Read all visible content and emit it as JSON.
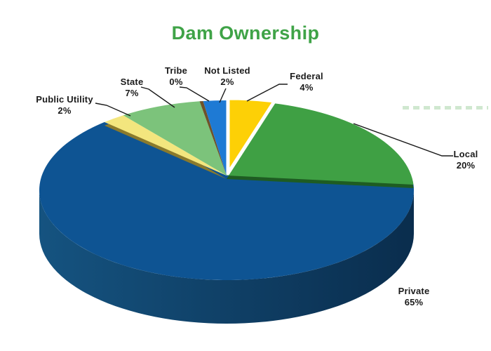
{
  "title": {
    "text": "Dam Ownership",
    "color": "#3FA347"
  },
  "chart_data": {
    "type": "pie",
    "style": "3d, Federal slice exploded with white separation, depth shadow under Private",
    "title": "Dam Ownership",
    "unit": "%",
    "categories": [
      "Private",
      "Local",
      "State",
      "Federal",
      "Not Listed",
      "Public Utility",
      "Tribe"
    ],
    "values": [
      65,
      20,
      7,
      4,
      2,
      2,
      0
    ],
    "slices_clockwise_from_top": [
      {
        "label": "Federal",
        "value": 4,
        "pct_label": "4%",
        "sweep_pct": 4,
        "color": "#FDD006",
        "exploded": true
      },
      {
        "label": "Local",
        "value": 20,
        "pct_label": "20%",
        "sweep_pct": 20,
        "color": "#3FA044",
        "edge_color": "#1E5C22"
      },
      {
        "label": "Private",
        "value": 65,
        "pct_label": "65%",
        "sweep_pct": 64.7,
        "color": "#0E5493",
        "side_gradient": [
          "#155380",
          "#0A2D4D"
        ]
      },
      {
        "label": "Public Utility",
        "value": 2,
        "pct_label": "2%",
        "sweep_pct": 2,
        "color": "#F3E67E",
        "edge_color": "#8A7A2C"
      },
      {
        "label": "State",
        "value": 7,
        "pct_label": "7%",
        "sweep_pct": 7,
        "color": "#7CC37B"
      },
      {
        "label": "Tribe",
        "value": 0,
        "pct_label": "0%",
        "sweep_pct": 0.3,
        "color": "#6F5229"
      },
      {
        "label": "Not Listed",
        "value": 2,
        "pct_label": "2%",
        "sweep_pct": 2,
        "color": "#1E7AD4"
      }
    ],
    "label_text_color": "#1B1B1B",
    "leader_line_color": "#1A1A1A",
    "artifact_note": "faint cropped green text fragment at right edge",
    "artifact_color": "#A8D4A8"
  }
}
